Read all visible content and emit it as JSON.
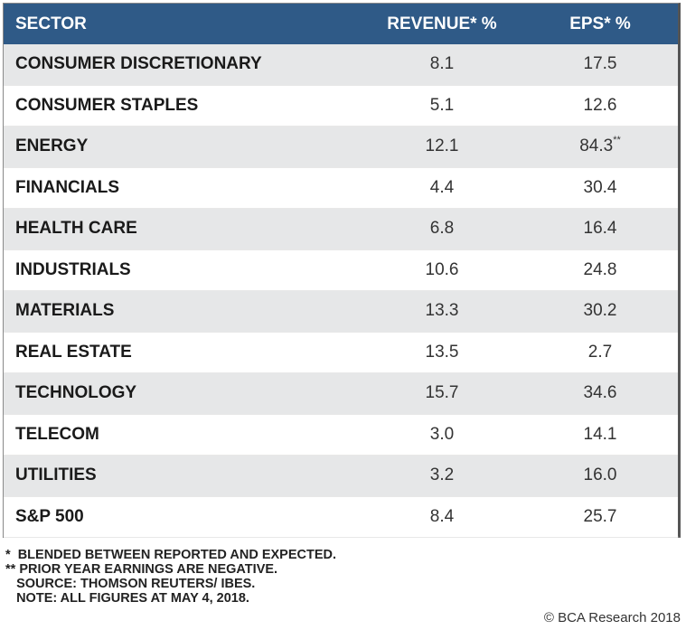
{
  "table": {
    "headers": {
      "sector": "SECTOR",
      "revenue": "REVENUE* %",
      "eps": "EPS* %"
    },
    "rows": [
      {
        "sector": "CONSUMER DISCRETIONARY",
        "revenue": "8.1",
        "eps": "17.5",
        "eps_note": ""
      },
      {
        "sector": "CONSUMER STAPLES",
        "revenue": "5.1",
        "eps": "12.6",
        "eps_note": ""
      },
      {
        "sector": "ENERGY",
        "revenue": "12.1",
        "eps": "84.3",
        "eps_note": "**"
      },
      {
        "sector": "FINANCIALS",
        "revenue": "4.4",
        "eps": "30.4",
        "eps_note": ""
      },
      {
        "sector": "HEALTH CARE",
        "revenue": "6.8",
        "eps": "16.4",
        "eps_note": ""
      },
      {
        "sector": "INDUSTRIALS",
        "revenue": "10.6",
        "eps": "24.8",
        "eps_note": ""
      },
      {
        "sector": "MATERIALS",
        "revenue": "13.3",
        "eps": "30.2",
        "eps_note": ""
      },
      {
        "sector": "REAL ESTATE",
        "revenue": "13.5",
        "eps": "2.7",
        "eps_note": ""
      },
      {
        "sector": "TECHNOLOGY",
        "revenue": "15.7",
        "eps": "34.6",
        "eps_note": ""
      },
      {
        "sector": "TELECOM",
        "revenue": "3.0",
        "eps": "14.1",
        "eps_note": ""
      },
      {
        "sector": "UTILITIES",
        "revenue": "3.2",
        "eps": "16.0",
        "eps_note": ""
      },
      {
        "sector": "S&P 500",
        "revenue": "8.4",
        "eps": "25.7",
        "eps_note": ""
      }
    ]
  },
  "footnotes": [
    "*  BLENDED BETWEEN REPORTED AND EXPECTED.",
    "** PRIOR YEAR EARNINGS ARE NEGATIVE.",
    "   SOURCE: THOMSON REUTERS/ IBES.",
    "   NOTE: ALL FIGURES AT MAY 4, 2018."
  ],
  "copyright": "© BCA Research 2018",
  "colors": {
    "header_bg": "#2f5a87",
    "row_alt_bg": "#e6e7e8"
  }
}
